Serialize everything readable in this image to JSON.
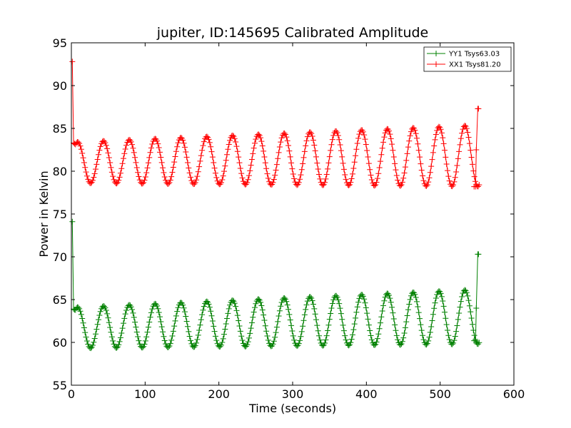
{
  "chart_data": {
    "type": "line",
    "title": "jupiter, ID:145695 Calibrated Amplitude",
    "xlabel": "Time (seconds)",
    "ylabel": "Power in Kelvin",
    "xlim": [
      0,
      600
    ],
    "ylim": [
      55,
      95
    ],
    "xticks": [
      0,
      100,
      200,
      300,
      400,
      500,
      600
    ],
    "yticks": [
      55,
      60,
      65,
      70,
      75,
      80,
      85,
      90,
      95
    ],
    "xtick_labels": [
      "0",
      "100",
      "200",
      "300",
      "400",
      "500",
      "600"
    ],
    "ytick_labels": [
      "55",
      "60",
      "65",
      "70",
      "75",
      "80",
      "85",
      "90",
      "95"
    ],
    "grid": false,
    "legend_position": "top-right",
    "marker": "plus",
    "series": [
      {
        "name": "YY1 Tsys63.03",
        "color": "#008000",
        "start": {
          "x": 1.3,
          "y": 74.1
        },
        "after_start": {
          "x": 3,
          "y": 63.9
        },
        "oscillation": {
          "period": 35,
          "phase_x_of_peak": 8.5,
          "midline_start": 61.7,
          "midline_end": 63.0,
          "amplitude_start": 2.4,
          "amplitude_end": 3.2,
          "t_start": 3,
          "t_end": 553
        },
        "end": [
          {
            "x": 546,
            "y": 60.2
          },
          {
            "x": 548,
            "y": 60.2
          },
          {
            "x": 549,
            "y": 64.0
          },
          {
            "x": 551,
            "y": 70.3
          },
          {
            "x": 552,
            "y": 70.3
          }
        ]
      },
      {
        "name": "XX1 Tsys81.20",
        "color": "#ff0000",
        "start": {
          "x": 1.3,
          "y": 92.8
        },
        "after_start": {
          "x": 3,
          "y": 83.3
        },
        "oscillation": {
          "period": 35,
          "phase_x_of_peak": 8.5,
          "midline_start": 81.0,
          "midline_end": 81.8,
          "amplitude_start": 2.4,
          "amplitude_end": 3.6,
          "t_start": 3,
          "t_end": 553
        },
        "end": [
          {
            "x": 546,
            "y": 78.2
          },
          {
            "x": 548,
            "y": 78.2
          },
          {
            "x": 549,
            "y": 82.5
          },
          {
            "x": 551,
            "y": 87.3
          },
          {
            "x": 552,
            "y": 87.3
          }
        ]
      }
    ]
  }
}
